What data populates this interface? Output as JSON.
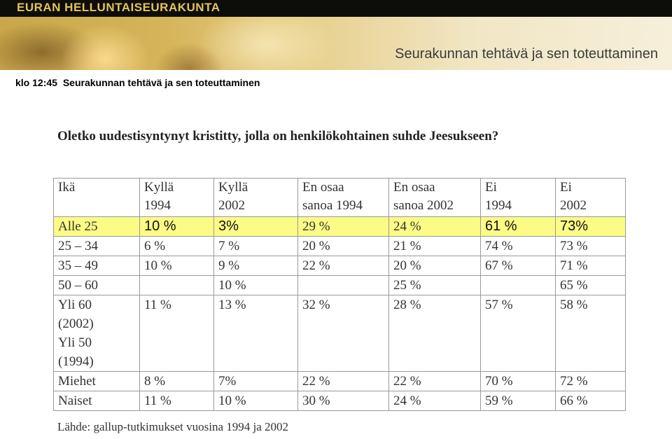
{
  "brand": "EURAN HELLUNTAISEURAKUNTA",
  "banner_title": "Seurakunnan tehtävä ja sen toteuttaminen",
  "agenda": {
    "time": "klo 12:45",
    "topic": "Seurakunnan tehtävä ja sen toteuttaminen"
  },
  "question": "Oletko uudestisyntynyt kristitty, jolla on henkilökohtainen suhde Jeesukseen?",
  "table": {
    "headers": [
      [
        "Ikä",
        ""
      ],
      [
        "Kyllä",
        "1994"
      ],
      [
        "Kyllä",
        "2002"
      ],
      [
        "En osaa",
        "sanoa 1994"
      ],
      [
        "En osaa",
        "sanoa 2002"
      ],
      [
        "Ei",
        "1994"
      ],
      [
        "Ei",
        "2002"
      ]
    ],
    "rows": [
      [
        "Alle 25",
        "10 %",
        "3%",
        "29 %",
        "24 %",
        "61 %",
        "73%"
      ],
      [
        "25 – 34",
        "6 %",
        "7 %",
        "20 %",
        "21 %",
        "74 %",
        "73 %"
      ],
      [
        "35 – 49",
        "10 %",
        "9 %",
        "22 %",
        "20 %",
        "67 %",
        "71 %"
      ],
      [
        "50 – 60",
        "",
        "10 %",
        "",
        "25 %",
        "",
        "65 %"
      ],
      [
        "Yli 60",
        "11 %",
        "13 %",
        "32 %",
        "28 %",
        "57 %",
        "58 %"
      ],
      [
        "(2002)",
        "",
        "",
        "",
        "",
        "",
        ""
      ],
      [
        "Yli 50",
        "",
        "",
        "",
        "",
        "",
        ""
      ],
      [
        "(1994)",
        "",
        "",
        "",
        "",
        "",
        ""
      ],
      [
        "Miehet",
        "8 %",
        "7%",
        "22 %",
        "22 %",
        "70 %",
        "72 %"
      ],
      [
        "Naiset",
        "11 %",
        "10 %",
        "30 %",
        "24 %",
        "59 %",
        "66 %"
      ]
    ]
  },
  "source": "Lähde: gallup-tutkimukset vuosina 1994 ja 2002",
  "colors": {
    "highlight": "#fbfb86",
    "banner_gold": "#d6b55a",
    "brand_text": "#e7c25a"
  }
}
